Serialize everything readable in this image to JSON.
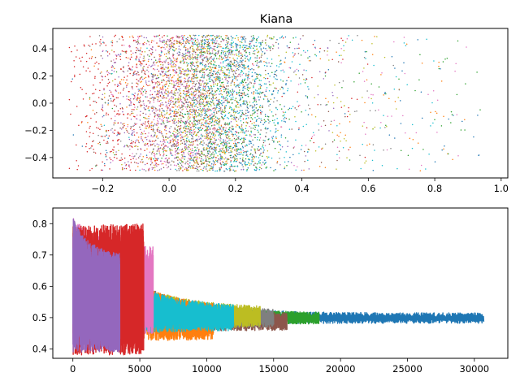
{
  "chart_data": [
    {
      "type": "scatter",
      "title": "Kiana",
      "xlabel": "",
      "ylabel": "",
      "xlim": [
        -0.35,
        1.02
      ],
      "ylim": [
        -0.55,
        0.55
      ],
      "xticks": [
        -0.2,
        0.0,
        0.2,
        0.4,
        0.6,
        0.8,
        1.0
      ],
      "xtick_labels": [
        "−0.2",
        "0.0",
        "0.2",
        "0.4",
        "0.6",
        "0.8",
        "1.0"
      ],
      "yticks": [
        -0.4,
        -0.2,
        0.0,
        0.2,
        0.4
      ],
      "ytick_labels": [
        "−0.4",
        "−0.2",
        "0.0",
        "0.2",
        "0.4"
      ],
      "grid": false,
      "marker": "dot",
      "series": [
        {
          "color": "#1f77b4",
          "x_range": [
            -0.3,
            0.95
          ],
          "y_range": [
            -0.5,
            0.5
          ],
          "x_center": 0.2
        },
        {
          "color": "#ff7f0e",
          "x_range": [
            -0.28,
            0.9
          ],
          "y_range": [
            -0.5,
            0.5
          ],
          "x_center": 0.05
        },
        {
          "color": "#2ca02c",
          "x_range": [
            -0.25,
            0.95
          ],
          "y_range": [
            -0.5,
            0.5
          ],
          "x_center": 0.15
        },
        {
          "color": "#d62728",
          "x_range": [
            -0.3,
            0.6
          ],
          "y_range": [
            -0.5,
            0.5
          ],
          "x_center": -0.12
        },
        {
          "color": "#9467bd",
          "x_range": [
            -0.2,
            0.5
          ],
          "y_range": [
            -0.5,
            0.5
          ],
          "x_center": 0.0
        },
        {
          "color": "#8c564b",
          "x_range": [
            -0.25,
            0.55
          ],
          "y_range": [
            -0.5,
            0.5
          ],
          "x_center": 0.1
        },
        {
          "color": "#e377c2",
          "x_range": [
            -0.2,
            0.9
          ],
          "y_range": [
            -0.5,
            0.5
          ],
          "x_center": 0.05
        },
        {
          "color": "#7f7f7f",
          "x_range": [
            -0.25,
            0.7
          ],
          "y_range": [
            -0.5,
            0.5
          ],
          "x_center": 0.1
        },
        {
          "color": "#bcbd22",
          "x_range": [
            -0.2,
            0.7
          ],
          "y_range": [
            -0.5,
            0.5
          ],
          "x_center": 0.12
        },
        {
          "color": "#17becf",
          "x_range": [
            -0.2,
            0.8
          ],
          "y_range": [
            -0.5,
            0.5
          ],
          "x_center": 0.2
        }
      ]
    },
    {
      "type": "line",
      "title": "",
      "xlabel": "",
      "ylabel": "",
      "xlim": [
        -1500,
        32500
      ],
      "ylim": [
        0.37,
        0.85
      ],
      "xticks": [
        0,
        5000,
        10000,
        15000,
        20000,
        25000,
        30000
      ],
      "xtick_labels": [
        "0",
        "5000",
        "10000",
        "15000",
        "20000",
        "25000",
        "30000"
      ],
      "yticks": [
        0.4,
        0.5,
        0.6,
        0.7,
        0.8
      ],
      "ytick_labels": [
        "0.4",
        "0.5",
        "0.6",
        "0.7",
        "0.8"
      ],
      "grid": false,
      "series": [
        {
          "color": "#1f77b4",
          "x_end": 30700,
          "start_high": 0.83,
          "start_low": 0.4,
          "final_high": 0.515,
          "final_low": 0.482,
          "draw_order": 0
        },
        {
          "color": "#2ca02c",
          "x_end": 18400,
          "start_high": 0.78,
          "start_low": 0.42,
          "final_high": 0.515,
          "final_low": 0.48,
          "draw_order": 1
        },
        {
          "color": "#8c564b",
          "x_end": 16000,
          "start_high": 0.8,
          "start_low": 0.42,
          "final_high": 0.51,
          "final_low": 0.46,
          "draw_order": 2
        },
        {
          "color": "#7f7f7f",
          "x_end": 15000,
          "start_high": 0.82,
          "start_low": 0.41,
          "final_high": 0.52,
          "final_low": 0.47,
          "draw_order": 3
        },
        {
          "color": "#bcbd22",
          "x_end": 14000,
          "start_high": 0.78,
          "start_low": 0.42,
          "final_high": 0.53,
          "final_low": 0.47,
          "draw_order": 4
        },
        {
          "color": "#ff7f0e",
          "x_end": 10500,
          "start_high": 0.82,
          "start_low": 0.41,
          "final_high": 0.53,
          "final_low": 0.43,
          "draw_order": 5
        },
        {
          "color": "#17becf",
          "x_end": 12000,
          "start_high": 0.76,
          "start_low": 0.42,
          "final_high": 0.53,
          "final_low": 0.46,
          "draw_order": 6
        },
        {
          "color": "#e377c2",
          "x_end": 6000,
          "start_high": 0.82,
          "start_low": 0.41,
          "final_high": 0.72,
          "final_low": 0.45,
          "draw_order": 7
        },
        {
          "color": "#d62728",
          "x_end": 5300,
          "start_high": 0.79,
          "start_low": 0.38,
          "final_high": 0.8,
          "final_low": 0.38,
          "draw_order": 8
        },
        {
          "color": "#9467bd",
          "x_end": 3500,
          "start_high": 0.82,
          "start_low": 0.39,
          "final_high": 0.7,
          "final_low": 0.39,
          "draw_order": 9
        }
      ]
    }
  ]
}
